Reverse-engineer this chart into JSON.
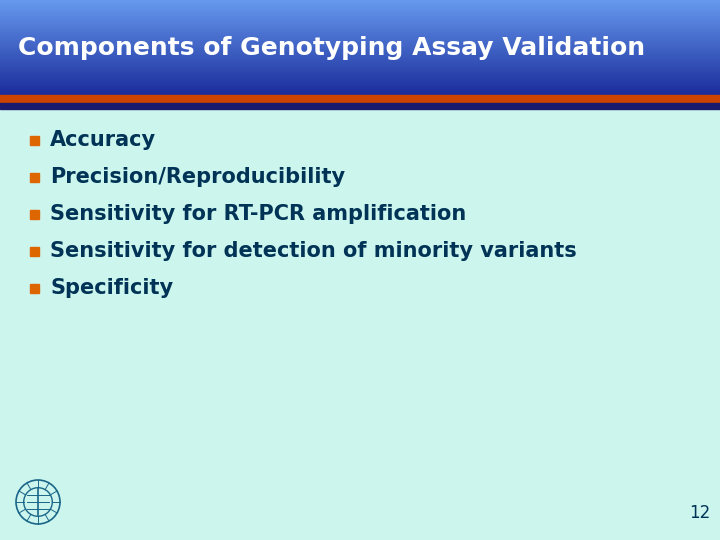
{
  "title": "Components of Genotyping Assay Validation",
  "title_color": "#ffffff",
  "title_bg_top": "#6699ee",
  "title_bg_bottom": "#1a2b9a",
  "header_orange_bar": "#cc4400",
  "header_dark_bar": "#1a1a6e",
  "body_bg_color": "#ccf5ee",
  "bullet_color": "#dd6600",
  "text_color": "#003355",
  "bullet_items": [
    "Accuracy",
    "Precision/Reproducibility",
    "Sensitivity for RT-PCR amplification",
    "Sensitivity for detection of minority variants",
    "Specificity"
  ],
  "page_number": "12",
  "page_number_color": "#003355",
  "title_fontsize": 18,
  "bullet_fontsize": 15,
  "page_num_fontsize": 12
}
